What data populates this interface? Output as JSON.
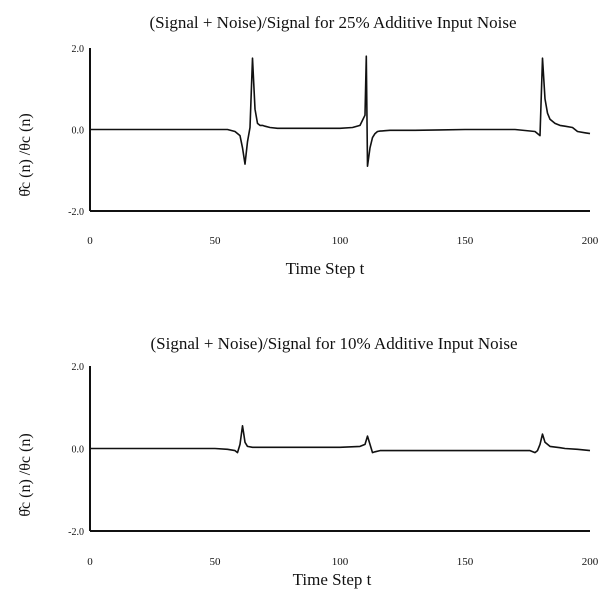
{
  "chart_data": [
    {
      "type": "line",
      "title": "(Signal + Noise)/Signal for 25% Additive Input Noise",
      "xlabel": "Time Step t",
      "ylabel": "θ̂c (n) /θc (n)",
      "xlim": [
        0,
        200
      ],
      "ylim": [
        -2.0,
        2.0
      ],
      "xticks": [
        0,
        50,
        100,
        150,
        200
      ],
      "xtick_labels": [
        "0",
        "50",
        "100",
        "150",
        "200"
      ],
      "yticks": [
        -2.0,
        0.0,
        2.0
      ],
      "ytick_labels": [
        "-2.0",
        "0.0",
        "2.0"
      ],
      "grid": false,
      "series": [
        {
          "x": [
            0,
            10,
            20,
            30,
            40,
            50,
            55,
            58,
            60,
            61,
            62,
            63,
            64,
            65,
            66,
            67,
            68,
            69,
            70,
            72,
            75,
            80,
            90,
            100,
            105,
            108,
            110,
            110.5,
            111,
            112,
            113,
            114,
            115,
            116,
            118,
            120,
            130,
            140,
            150,
            160,
            170,
            178,
            180,
            181,
            182,
            183,
            184,
            186,
            188,
            190,
            193,
            195,
            198,
            200
          ],
          "y": [
            0.0,
            0.0,
            0.0,
            0.0,
            0.0,
            0.0,
            0.0,
            -0.05,
            -0.15,
            -0.45,
            -0.85,
            -0.3,
            0.05,
            1.75,
            0.5,
            0.15,
            0.1,
            0.1,
            0.08,
            0.05,
            0.03,
            0.03,
            0.03,
            0.03,
            0.05,
            0.1,
            0.35,
            1.8,
            -0.9,
            -0.45,
            -0.2,
            -0.1,
            -0.05,
            -0.04,
            -0.03,
            -0.02,
            -0.02,
            -0.01,
            0.0,
            0.0,
            0.0,
            -0.05,
            -0.15,
            1.75,
            0.75,
            0.4,
            0.25,
            0.15,
            0.1,
            0.08,
            0.05,
            -0.05,
            -0.08,
            -0.1
          ]
        }
      ]
    },
    {
      "type": "line",
      "title": "(Signal + Noise)/Signal for 10% Additive Input Noise",
      "xlabel": "Time Step t",
      "ylabel": "θ̂c (n) /θc (n)",
      "xlim": [
        0,
        200
      ],
      "ylim": [
        -2.0,
        2.0
      ],
      "xticks": [
        0,
        50,
        100,
        150,
        200
      ],
      "xtick_labels": [
        "0",
        "50",
        "100",
        "150",
        "200"
      ],
      "yticks": [
        -2.0,
        0.0,
        2.0
      ],
      "ytick_labels": [
        "-2.0",
        "0.0",
        "2.0"
      ],
      "grid": false,
      "series": [
        {
          "x": [
            0,
            10,
            20,
            30,
            40,
            50,
            55,
            58,
            59,
            60,
            61,
            61.5,
            62,
            63,
            65,
            70,
            80,
            90,
            100,
            108,
            110,
            111,
            112,
            113,
            114,
            116,
            120,
            130,
            140,
            150,
            160,
            170,
            176,
            178,
            179,
            180,
            181,
            182,
            184,
            188,
            190,
            195,
            200
          ],
          "y": [
            0.0,
            0.0,
            0.0,
            0.0,
            0.0,
            0.0,
            -0.02,
            -0.05,
            -0.1,
            0.1,
            0.55,
            0.35,
            0.15,
            0.05,
            0.03,
            0.03,
            0.03,
            0.03,
            0.03,
            0.05,
            0.1,
            0.3,
            0.1,
            -0.1,
            -0.08,
            -0.05,
            -0.05,
            -0.05,
            -0.05,
            -0.05,
            -0.05,
            -0.05,
            -0.05,
            -0.1,
            -0.05,
            0.1,
            0.35,
            0.15,
            0.05,
            0.02,
            0.0,
            -0.02,
            -0.05
          ]
        }
      ]
    }
  ]
}
